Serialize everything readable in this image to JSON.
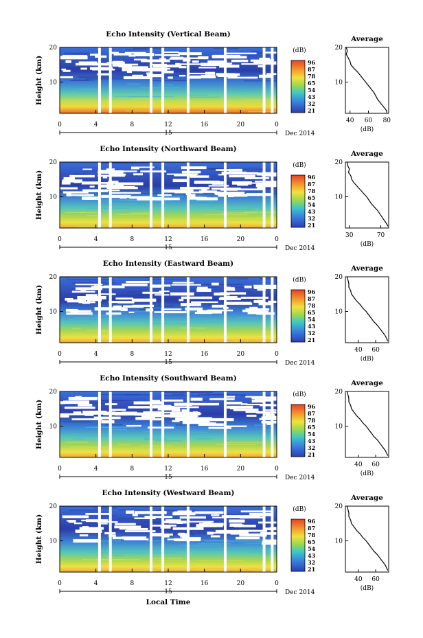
{
  "date_label": "Dec 2014",
  "date_day": "15",
  "x_axis_label": "Local Time",
  "y_axis_label": "Height (km)",
  "avg_title": "Average",
  "avg_xlabel": "(dB)",
  "colorbar_unit": "(dB)",
  "colors": {
    "high": "#e8402a",
    "mid": "#f1e23c",
    "low": "#2a3fb0"
  },
  "chart_data": [
    {
      "type": "heatmap",
      "title": "Echo Intensity (Vertical Beam)",
      "xlim": [
        0,
        24
      ],
      "ylim": [
        1,
        20
      ],
      "x_ticks": [
        "0",
        "4",
        "8",
        "12",
        "16",
        "20",
        "0"
      ],
      "y_ticks": [
        "20",
        "10"
      ],
      "colorbar": [
        "96",
        "87",
        "78",
        "65",
        "54",
        "43",
        "32",
        "21"
      ],
      "avg_profile": {
        "type": "line",
        "title": "Average",
        "xlabel": "(dB)",
        "x_ticks": [
          "40",
          "60",
          "80"
        ],
        "xlim": [
          35,
          82
        ],
        "x": [
          36,
          37,
          36,
          38,
          40,
          41,
          44,
          48,
          51,
          54,
          57,
          60,
          63,
          66,
          68,
          70,
          73,
          76,
          79,
          80
        ],
        "y": [
          20,
          19,
          18,
          17,
          16,
          15,
          14,
          13,
          12,
          11,
          10,
          9,
          8,
          7,
          6,
          5,
          4,
          3,
          2,
          1.5
        ]
      }
    },
    {
      "type": "heatmap",
      "title": "Echo Intensity (Northward Beam)",
      "xlim": [
        0,
        24
      ],
      "ylim": [
        1,
        20
      ],
      "x_ticks": [
        "0",
        "4",
        "8",
        "12",
        "16",
        "20",
        "0"
      ],
      "y_ticks": [
        "20",
        "10"
      ],
      "colorbar": [
        "96",
        "87",
        "78",
        "65",
        "54",
        "43",
        "32",
        "21"
      ],
      "avg_profile": {
        "type": "line",
        "title": "Average",
        "xlabel": "(dB)",
        "x_ticks": [
          "30",
          "70"
        ],
        "xlim": [
          25,
          80
        ],
        "x": [
          27,
          28,
          30,
          29,
          32,
          33,
          36,
          40,
          44,
          48,
          52,
          55,
          58,
          62,
          66,
          69,
          72,
          75,
          78,
          79
        ],
        "y": [
          20,
          19,
          18,
          17,
          16,
          15,
          14,
          13,
          12,
          11,
          10,
          9,
          8,
          7,
          6,
          5,
          4,
          3,
          2,
          1.5
        ]
      }
    },
    {
      "type": "heatmap",
      "title": "Echo Intensity (Eastward Beam)",
      "xlim": [
        0,
        24
      ],
      "ylim": [
        1,
        20
      ],
      "x_ticks": [
        "0",
        "4",
        "8",
        "12",
        "16",
        "20",
        "0"
      ],
      "y_ticks": [
        "20",
        "10"
      ],
      "colorbar": [
        "96",
        "87",
        "78",
        "65",
        "54",
        "43",
        "32",
        "21"
      ],
      "avg_profile": {
        "type": "line",
        "title": "Average",
        "xlabel": "(dB)",
        "x_ticks": [
          "40",
          "60"
        ],
        "xlim": [
          25,
          75
        ],
        "x": [
          27,
          28,
          29,
          29,
          31,
          32,
          35,
          38,
          42,
          45,
          49,
          52,
          55,
          58,
          62,
          65,
          68,
          71,
          73,
          74
        ],
        "y": [
          20,
          19,
          18,
          17,
          16,
          15,
          14,
          13,
          12,
          11,
          10,
          9,
          8,
          7,
          6,
          5,
          4,
          3,
          2,
          1.5
        ]
      }
    },
    {
      "type": "heatmap",
      "title": "Echo Intensity (Southward Beam)",
      "xlim": [
        0,
        24
      ],
      "ylim": [
        1,
        20
      ],
      "x_ticks": [
        "0",
        "4",
        "8",
        "12",
        "16",
        "20",
        "0"
      ],
      "y_ticks": [
        "20",
        "10"
      ],
      "colorbar": [
        "96",
        "87",
        "78",
        "65",
        "54",
        "43",
        "32",
        "21"
      ],
      "avg_profile": {
        "type": "line",
        "title": "Average",
        "xlabel": "(dB)",
        "x_ticks": [
          "40",
          "60"
        ],
        "xlim": [
          25,
          75
        ],
        "x": [
          27,
          28,
          29,
          29,
          31,
          32,
          35,
          38,
          42,
          45,
          49,
          52,
          55,
          58,
          62,
          65,
          68,
          71,
          73,
          74
        ],
        "y": [
          20,
          19,
          18,
          17,
          16,
          15,
          14,
          13,
          12,
          11,
          10,
          9,
          8,
          7,
          6,
          5,
          4,
          3,
          2,
          1.5
        ]
      }
    },
    {
      "type": "heatmap",
      "title": "Echo Intensity (Westward Beam)",
      "xlim": [
        0,
        24
      ],
      "ylim": [
        1,
        20
      ],
      "x_ticks": [
        "0",
        "4",
        "8",
        "12",
        "16",
        "20",
        "0"
      ],
      "y_ticks": [
        "20",
        "10"
      ],
      "colorbar": [
        "96",
        "87",
        "78",
        "65",
        "54",
        "43",
        "32",
        "21"
      ],
      "avg_profile": {
        "type": "line",
        "title": "Average",
        "xlabel": "(dB)",
        "x_ticks": [
          "40",
          "60"
        ],
        "xlim": [
          25,
          75
        ],
        "x": [
          27,
          28,
          29,
          29,
          31,
          32,
          35,
          38,
          42,
          45,
          49,
          52,
          55,
          58,
          62,
          65,
          68,
          71,
          73,
          74
        ],
        "y": [
          20,
          19,
          18,
          17,
          16,
          15,
          14,
          13,
          12,
          11,
          10,
          9,
          8,
          7,
          6,
          5,
          4,
          3,
          2,
          1.5
        ]
      }
    }
  ]
}
